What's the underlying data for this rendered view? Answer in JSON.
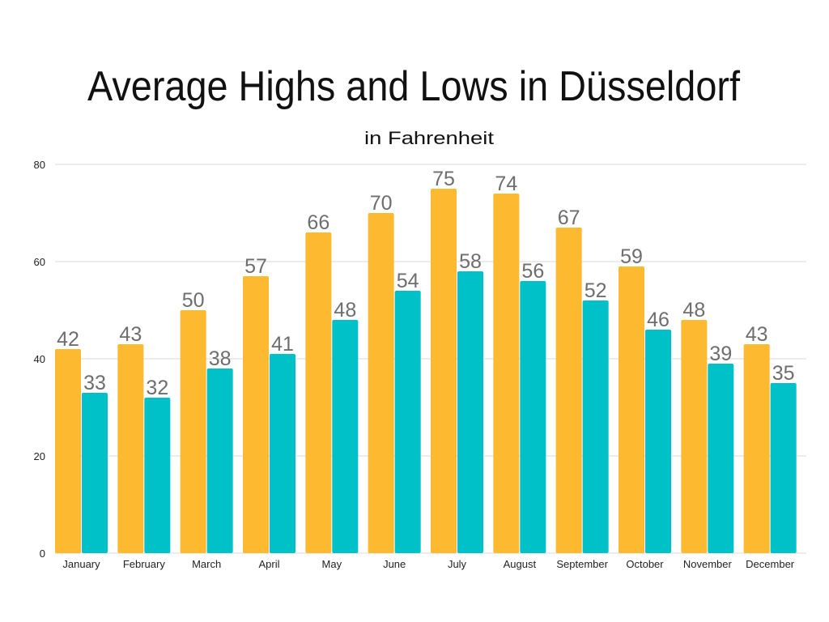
{
  "chart_data": {
    "type": "bar",
    "title": "Average Highs and Lows in Düsseldorf",
    "subtitle": "in Fahrenheit",
    "categories": [
      "January",
      "February",
      "March",
      "April",
      "May",
      "June",
      "July",
      "August",
      "September",
      "October",
      "November",
      "December"
    ],
    "series": [
      {
        "values": [
          42,
          43,
          50,
          57,
          66,
          70,
          75,
          74,
          67,
          59,
          48,
          43
        ],
        "color": "#FDB92F"
      },
      {
        "values": [
          33,
          32,
          38,
          41,
          48,
          54,
          58,
          56,
          52,
          46,
          39,
          35
        ],
        "color": "#00C1C8"
      }
    ],
    "ylim": [
      0,
      80
    ],
    "yticks": [
      0,
      20,
      40,
      60,
      80
    ],
    "grid": true,
    "data_labels": true,
    "label_color": "#6E6E6E"
  }
}
